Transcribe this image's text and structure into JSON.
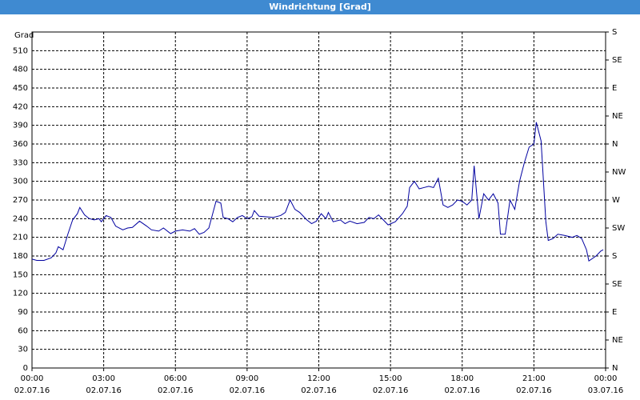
{
  "window_title": "Windrichtung [Grad]",
  "chart_data": {
    "type": "line",
    "y_label": "Grad",
    "x": [
      0,
      0.2,
      0.5,
      0.8,
      1.0,
      1.1,
      1.3,
      1.5,
      1.7,
      1.9,
      2.0,
      2.2,
      2.4,
      2.6,
      2.8,
      2.9,
      3.1,
      3.3,
      3.5,
      3.8,
      4.0,
      4.2,
      4.5,
      4.8,
      5.0,
      5.3,
      5.5,
      5.8,
      6.0,
      6.3,
      6.6,
      6.8,
      7.0,
      7.2,
      7.4,
      7.7,
      7.9,
      8.0,
      8.2,
      8.4,
      8.6,
      8.8,
      9.0,
      9.2,
      9.3,
      9.5,
      9.8,
      10.1,
      10.4,
      10.6,
      10.8,
      11.0,
      11.2,
      11.5,
      11.7,
      11.9,
      12.1,
      12.3,
      12.4,
      12.6,
      12.9,
      13.1,
      13.3,
      13.6,
      13.9,
      14.1,
      14.3,
      14.5,
      14.7,
      14.9,
      15.2,
      15.5,
      15.7,
      15.8,
      16.0,
      16.2,
      16.4,
      16.6,
      16.8,
      17.0,
      17.2,
      17.4,
      17.6,
      17.8,
      18.0,
      18.2,
      18.4,
      18.5,
      18.7,
      18.9,
      19.1,
      19.3,
      19.5,
      19.6,
      19.8,
      20.0,
      20.2,
      20.4,
      20.6,
      20.8,
      21.0,
      21.1,
      21.3,
      21.5,
      21.6,
      21.8,
      22.0,
      22.3,
      22.6,
      22.8,
      23.0,
      23.2,
      23.3,
      23.6,
      23.8,
      23.9
    ],
    "series": [
      {
        "name": "Windrichtung",
        "color": "#0000a0",
        "values": [
          175,
          173,
          173,
          177,
          185,
          195,
          190,
          215,
          238,
          248,
          258,
          246,
          240,
          238,
          240,
          235,
          245,
          242,
          228,
          222,
          225,
          226,
          236,
          228,
          222,
          220,
          225,
          216,
          220,
          222,
          220,
          224,
          215,
          218,
          225,
          268,
          265,
          242,
          240,
          235,
          242,
          245,
          240,
          243,
          253,
          244,
          243,
          242,
          245,
          250,
          270,
          255,
          250,
          238,
          232,
          236,
          248,
          240,
          250,
          235,
          238,
          232,
          236,
          232,
          234,
          242,
          240,
          246,
          238,
          230,
          235,
          248,
          260,
          290,
          300,
          288,
          290,
          292,
          290,
          305,
          262,
          258,
          262,
          270,
          268,
          262,
          270,
          325,
          240,
          280,
          270,
          280,
          265,
          215,
          215,
          270,
          255,
          300,
          330,
          355,
          360,
          395,
          365,
          235,
          205,
          208,
          215,
          213,
          210,
          213,
          208,
          190,
          172,
          180,
          188,
          190
        ]
      }
    ],
    "xlim": [
      0,
      24
    ],
    "ylim": [
      0,
      540
    ],
    "y2lim": [
      0,
      540
    ],
    "yticks": [
      0,
      30,
      60,
      90,
      120,
      150,
      180,
      210,
      240,
      270,
      300,
      330,
      360,
      390,
      420,
      450,
      480,
      510
    ],
    "y2ticks": [
      {
        "value": 0,
        "label": "N"
      },
      {
        "value": 45,
        "label": "NE"
      },
      {
        "value": 90,
        "label": "E"
      },
      {
        "value": 135,
        "label": "SE"
      },
      {
        "value": 180,
        "label": "S"
      },
      {
        "value": 225,
        "label": "SW"
      },
      {
        "value": 270,
        "label": "W"
      },
      {
        "value": 315,
        "label": "NW"
      },
      {
        "value": 360,
        "label": "N"
      },
      {
        "value": 405,
        "label": "NE"
      },
      {
        "value": 450,
        "label": "E"
      },
      {
        "value": 495,
        "label": "SE"
      },
      {
        "value": 540,
        "label": "S"
      }
    ],
    "xticks": [
      {
        "value": 0,
        "label": "00:00"
      },
      {
        "value": 3,
        "label": "03:00"
      },
      {
        "value": 6,
        "label": "06:00"
      },
      {
        "value": 9,
        "label": "09:00"
      },
      {
        "value": 12,
        "label": "12:00"
      },
      {
        "value": 15,
        "label": "15:00"
      },
      {
        "value": 18,
        "label": "18:00"
      },
      {
        "value": 21,
        "label": "21:00"
      },
      {
        "value": 24,
        "label": "00:00"
      }
    ],
    "xtick_dates": [
      "02.07.16",
      "02.07.16",
      "02.07.16",
      "02.07.16",
      "02.07.16",
      "02.07.16",
      "02.07.16",
      "02.07.16",
      "03.07.16"
    ],
    "grid": true
  }
}
